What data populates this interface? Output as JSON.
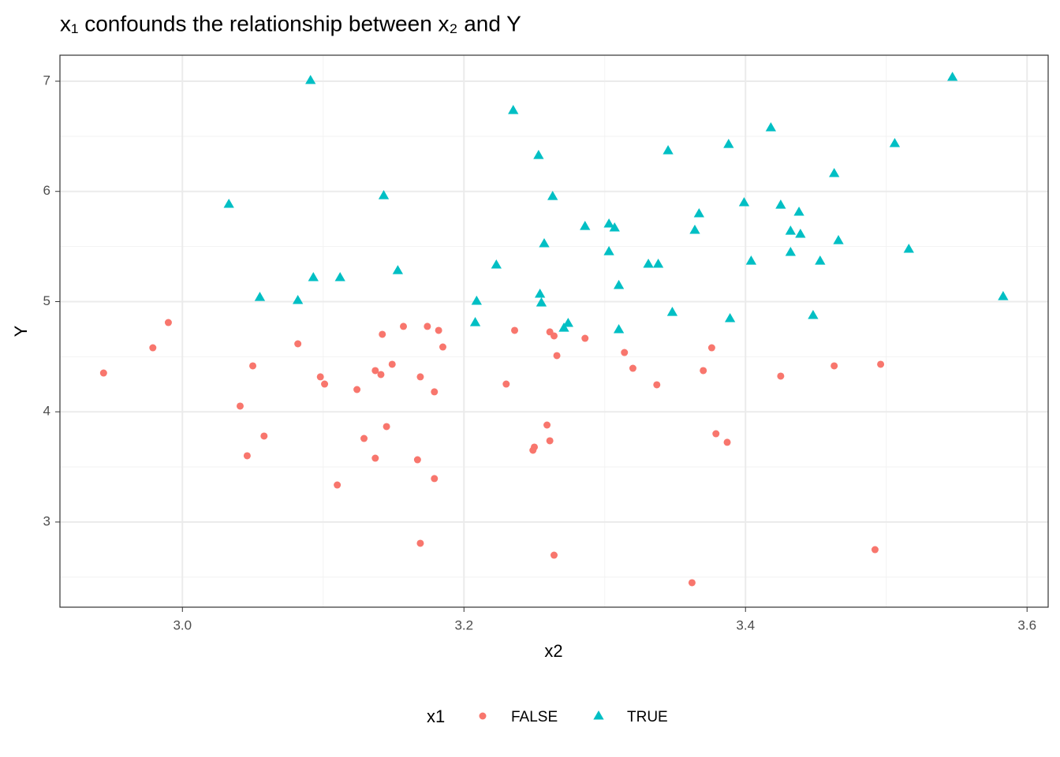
{
  "chart_data": {
    "type": "scatter",
    "title": "x₁ confounds the relationship between x₂ and Y",
    "x_label": "x2",
    "y_label": "Y",
    "legend_title": "x1",
    "legend_position": "bottom",
    "grid": true,
    "xlim": [
      2.913,
      3.615
    ],
    "ylim": [
      2.227,
      7.236
    ],
    "xticks": [
      {
        "value": 3.0,
        "label": "3.0"
      },
      {
        "value": 3.2,
        "label": "3.2"
      },
      {
        "value": 3.4,
        "label": "3.4"
      },
      {
        "value": 3.6,
        "label": "3.6"
      }
    ],
    "yticks": [
      3,
      4,
      5,
      6,
      7
    ],
    "xminor": [
      3.1,
      3.3,
      3.5
    ],
    "yminor": [
      2.5,
      3.5,
      4.5,
      5.5,
      6.5
    ],
    "series": [
      {
        "name": "FALSE",
        "color": "#F8766D",
        "shape": "circle",
        "x": [
          2.944,
          2.979,
          2.99,
          3.041,
          3.046,
          3.05,
          3.058,
          3.082,
          3.098,
          3.101,
          3.11,
          3.124,
          3.129,
          3.137,
          3.137,
          3.141,
          3.142,
          3.145,
          3.149,
          3.157,
          3.167,
          3.169,
          3.169,
          3.174,
          3.179,
          3.179,
          3.182,
          3.185,
          3.23,
          3.236,
          3.249,
          3.25,
          3.259,
          3.261,
          3.261,
          3.264,
          3.264,
          3.266,
          3.286,
          3.314,
          3.32,
          3.337,
          3.362,
          3.37,
          3.376,
          3.379,
          3.387,
          3.425,
          3.463,
          3.492,
          3.496
        ],
        "values": [
          4.352,
          4.581,
          4.81,
          4.052,
          3.601,
          4.417,
          3.78,
          4.617,
          4.317,
          4.252,
          3.336,
          4.202,
          3.758,
          3.579,
          4.374,
          4.338,
          4.703,
          3.866,
          4.431,
          4.775,
          3.565,
          2.807,
          4.317,
          4.775,
          4.181,
          3.394,
          4.739,
          4.588,
          4.252,
          4.739,
          3.651,
          3.68,
          3.88,
          4.725,
          3.737,
          4.689,
          2.699,
          4.51,
          4.667,
          4.538,
          4.395,
          4.245,
          2.449,
          4.374,
          4.581,
          3.801,
          3.723,
          4.324,
          4.417,
          2.749,
          4.431
        ]
      },
      {
        "name": "TRUE",
        "color": "#00BFC4",
        "shape": "triangle",
        "x": [
          3.033,
          3.055,
          3.082,
          3.091,
          3.093,
          3.112,
          3.143,
          3.153,
          3.208,
          3.209,
          3.223,
          3.235,
          3.253,
          3.254,
          3.255,
          3.257,
          3.263,
          3.271,
          3.274,
          3.286,
          3.303,
          3.303,
          3.307,
          3.31,
          3.31,
          3.331,
          3.338,
          3.345,
          3.348,
          3.364,
          3.367,
          3.388,
          3.389,
          3.399,
          3.404,
          3.418,
          3.425,
          3.432,
          3.432,
          3.438,
          3.439,
          3.448,
          3.453,
          3.463,
          3.466,
          3.506,
          3.516,
          3.547,
          3.583
        ],
        "values": [
          5.884,
          5.039,
          5.011,
          7.007,
          5.218,
          5.218,
          5.962,
          5.282,
          4.81,
          5.004,
          5.333,
          6.735,
          6.327,
          5.068,
          4.989,
          5.526,
          5.955,
          4.76,
          4.803,
          5.683,
          5.705,
          5.454,
          5.669,
          5.147,
          4.746,
          5.34,
          5.34,
          6.37,
          4.903,
          5.648,
          5.798,
          6.427,
          4.846,
          5.898,
          5.368,
          6.578,
          5.876,
          5.64,
          5.447,
          5.812,
          5.612,
          4.875,
          5.368,
          6.163,
          5.554,
          6.435,
          5.476,
          7.036,
          5.046
        ]
      }
    ]
  }
}
